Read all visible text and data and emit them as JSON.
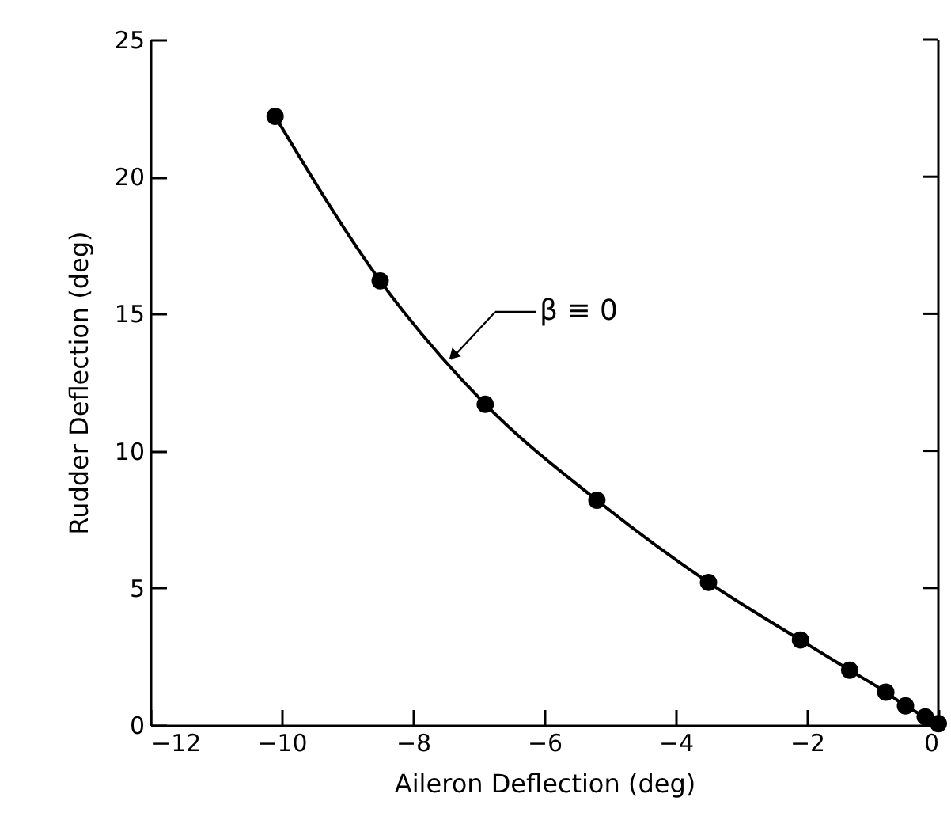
{
  "chart_data": {
    "type": "line",
    "xlabel": "Aileron Deflection (deg)",
    "ylabel": "Rudder Deflection (deg)",
    "x": [
      -10.1,
      -8.5,
      -6.9,
      -5.2,
      -3.5,
      -2.1,
      -1.35,
      -0.8,
      -0.5,
      -0.2,
      0
    ],
    "series": [
      {
        "color": "#000000",
        "values": [
          22.2,
          16.2,
          11.7,
          8.2,
          5.2,
          3.1,
          2.0,
          1.2,
          0.7,
          0.3,
          0.05
        ]
      }
    ],
    "xlim": [
      -12,
      0
    ],
    "xticks": [
      -12,
      -10,
      -8,
      -6,
      -4,
      -2,
      0
    ],
    "ylim": [
      0,
      25
    ],
    "yticks": [
      0,
      5,
      10,
      15,
      20,
      25
    ],
    "marker": "circle",
    "line_style": "solid",
    "grid": false,
    "annotations": [
      "β ≡ 0"
    ]
  }
}
